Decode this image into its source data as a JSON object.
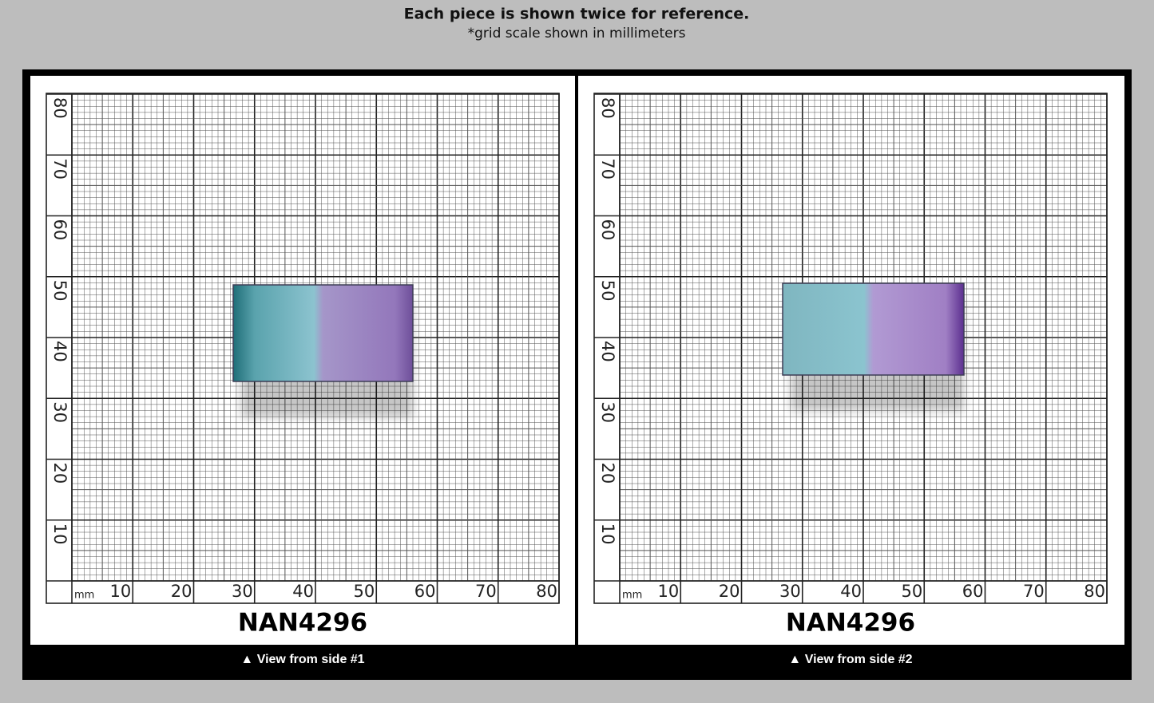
{
  "header": {
    "title": "Each piece is shown twice for reference.",
    "subtitle": "*grid scale shown in millimeters"
  },
  "panels": [
    {
      "x_labels": [
        10,
        20,
        30,
        40,
        50,
        60,
        70,
        80
      ],
      "y_labels": [
        10,
        20,
        30,
        40,
        50,
        60,
        70,
        80
      ],
      "unit": "mm",
      "product_id": "NAN4296",
      "caption": "▲ View from side #1"
    },
    {
      "x_labels": [
        10,
        20,
        30,
        40,
        50,
        60,
        70,
        80
      ],
      "y_labels": [
        10,
        20,
        30,
        40,
        50,
        60,
        70,
        80
      ],
      "unit": "mm",
      "product_id": "NAN4296",
      "caption": "▲ View from side #2"
    }
  ]
}
